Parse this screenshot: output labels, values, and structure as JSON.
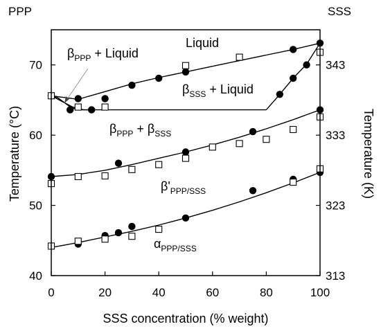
{
  "chart_data": {
    "type": "scatter",
    "corner_labels": {
      "left": "PPP",
      "right": "SSS"
    },
    "xlabel": "SSS concentration (% weight)",
    "ylabel": "Temperature (°C)",
    "ylabel_right": "Temperature (K)",
    "xlim": [
      0,
      100
    ],
    "ylim": [
      40,
      75
    ],
    "x_ticks": [
      "0",
      "20",
      "40",
      "60",
      "80",
      "100"
    ],
    "y_ticks": [
      "40",
      "50",
      "60",
      "70"
    ],
    "y_right_ticks": [
      "313",
      "323",
      "333",
      "343"
    ],
    "region_labels": [
      {
        "text": "Liquid",
        "sub": ""
      },
      {
        "text": "β",
        "sub": "PPP",
        "suffix": " + Liquid"
      },
      {
        "text": "β",
        "sub": "SSS",
        "suffix": " + Liquid"
      },
      {
        "text": "β",
        "sub": "PPP",
        "suffix": " + β",
        "sub2": "SSS"
      },
      {
        "text": "β'",
        "sub": "PPP/SSS"
      },
      {
        "text": "α",
        "sub": "PPP/SSS"
      }
    ],
    "series": [
      {
        "marker": "filled-circle",
        "values": [
          [
            0,
            65.6
          ],
          [
            7,
            63.6
          ],
          [
            10,
            65.2
          ],
          [
            15,
            63.6
          ],
          [
            20,
            65.2
          ],
          [
            30,
            67.1
          ],
          [
            40,
            68.1
          ],
          [
            50,
            69.0
          ],
          [
            90,
            72.2
          ],
          [
            100,
            73.1
          ],
          [
            85,
            65.8
          ],
          [
            90,
            68.1
          ],
          [
            95,
            70.0
          ],
          [
            0,
            54.1
          ],
          [
            25,
            56.0
          ],
          [
            50,
            57.6
          ],
          [
            75,
            60.5
          ],
          [
            100,
            63.6
          ],
          [
            10,
            44.5
          ],
          [
            20,
            45.7
          ],
          [
            25,
            46.1
          ],
          [
            30,
            47.0
          ],
          [
            50,
            48.2
          ],
          [
            75,
            52.1
          ],
          [
            90,
            53.7
          ],
          [
            100,
            54.7
          ]
        ]
      },
      {
        "marker": "open-square",
        "values": [
          [
            0,
            65.6
          ],
          [
            10,
            64.0
          ],
          [
            20,
            64.0
          ],
          [
            50,
            69.9
          ],
          [
            70,
            71.1
          ],
          [
            100,
            71.8
          ],
          [
            0,
            53.1
          ],
          [
            10,
            54.1
          ],
          [
            20,
            54.2
          ],
          [
            30,
            55.1
          ],
          [
            40,
            55.8
          ],
          [
            50,
            56.7
          ],
          [
            60,
            58.3
          ],
          [
            70,
            58.8
          ],
          [
            80,
            59.4
          ],
          [
            90,
            60.8
          ],
          [
            100,
            62.6
          ],
          [
            0,
            44.2
          ],
          [
            10,
            44.9
          ],
          [
            20,
            45.2
          ],
          [
            30,
            45.6
          ],
          [
            40,
            46.6
          ],
          [
            90,
            53.3
          ],
          [
            100,
            55.2
          ]
        ]
      }
    ],
    "curves": [
      {
        "points": [
          [
            0,
            65.6
          ],
          [
            10,
            65.1
          ],
          [
            20,
            66.2
          ],
          [
            30,
            67.3
          ],
          [
            40,
            68.2
          ],
          [
            50,
            69.0
          ],
          [
            60,
            69.8
          ],
          [
            70,
            70.6
          ],
          [
            80,
            71.4
          ],
          [
            90,
            72.2
          ],
          [
            100,
            73.1
          ]
        ]
      },
      {
        "points": [
          [
            0,
            65.6
          ],
          [
            2.5,
            65.3
          ],
          [
            5,
            64.6
          ],
          [
            7.5,
            63.9
          ],
          [
            10,
            63.6
          ]
        ]
      },
      {
        "points": [
          [
            0,
            65.6
          ],
          [
            4,
            64.8
          ],
          [
            8,
            64.0
          ],
          [
            12,
            63.6
          ],
          [
            16,
            63.6
          ]
        ]
      },
      {
        "points": [
          [
            10,
            63.6
          ],
          [
            80,
            63.6
          ]
        ]
      },
      {
        "points": [
          [
            80,
            63.6
          ],
          [
            85,
            65.8
          ],
          [
            90,
            68.1
          ],
          [
            95,
            70.1
          ],
          [
            100,
            73.1
          ]
        ]
      },
      {
        "points": [
          [
            0,
            54.1
          ],
          [
            10,
            54.4
          ],
          [
            20,
            55.0
          ],
          [
            30,
            55.8
          ],
          [
            40,
            56.7
          ],
          [
            50,
            57.6
          ],
          [
            60,
            58.6
          ],
          [
            70,
            59.7
          ],
          [
            80,
            60.9
          ],
          [
            90,
            62.2
          ],
          [
            100,
            63.6
          ]
        ]
      },
      {
        "points": [
          [
            0,
            44.0
          ],
          [
            10,
            44.7
          ],
          [
            20,
            45.5
          ],
          [
            30,
            46.3
          ],
          [
            40,
            47.2
          ],
          [
            50,
            48.2
          ],
          [
            60,
            49.3
          ],
          [
            70,
            50.5
          ],
          [
            80,
            51.8
          ],
          [
            90,
            53.2
          ],
          [
            100,
            54.7
          ]
        ]
      }
    ]
  }
}
